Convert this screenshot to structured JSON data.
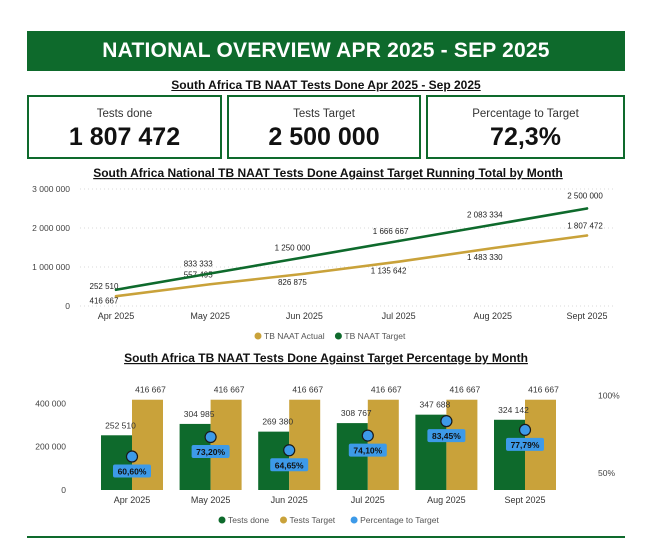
{
  "header": {
    "title": "NATIONAL OVERVIEW APR 2025 - SEP 2025"
  },
  "section1_title": "South Africa TB NAAT Tests Done Apr 2025 - Sep 2025",
  "kpis": [
    {
      "label": "Tests done",
      "value": "1 807 472"
    },
    {
      "label": "Tests Target",
      "value": "2 500 000"
    },
    {
      "label": "Percentage to Target",
      "value": "72,3%"
    }
  ],
  "colors": {
    "green": "#0e6a2c",
    "gold": "#c9a23a",
    "blue": "#3d9ae8"
  },
  "chart_data": [
    {
      "type": "line",
      "title": "South Africa National TB NAAT Tests Done Against Target Running Total by Month",
      "categories": [
        "Apr 2025",
        "May 2025",
        "Jun 2025",
        "Jul 2025",
        "Aug 2025",
        "Sept 2025"
      ],
      "y_ticks": [
        {
          "value": 0,
          "label": "0"
        },
        {
          "value": 1000000,
          "label": "1 000 000"
        },
        {
          "value": 2000000,
          "label": "2 000 000"
        },
        {
          "value": 3000000,
          "label": "3 000 000"
        }
      ],
      "ylim": [
        0,
        3000000
      ],
      "grid": true,
      "legend_position": "bottom",
      "series": [
        {
          "name": "TB NAAT Actual",
          "color": "#c9a23a",
          "values": [
            252510,
            557495,
            826875,
            1135642,
            1483330,
            1807472
          ],
          "labels": [
            "252 510",
            "557 495",
            "826 875",
            "1 135 642",
            "1 483 330",
            "1 807 472"
          ]
        },
        {
          "name": "TB NAAT Target",
          "color": "#0e6a2c",
          "values": [
            416667,
            833333,
            1250000,
            1666667,
            2083334,
            2500000
          ],
          "labels": [
            "416 667",
            "833 333",
            "1 250 000",
            "1 666 667",
            "2 083 334",
            "2 500 000"
          ]
        }
      ]
    },
    {
      "type": "bar",
      "title": "South Africa TB NAAT Tests Done Against Target Percentage by Month",
      "categories": [
        "Apr 2025",
        "May 2025",
        "Jun 2025",
        "Jul 2025",
        "Aug 2025",
        "Sept 2025"
      ],
      "y_ticks": [
        {
          "value": 0,
          "label": "0"
        },
        {
          "value": 200000,
          "label": "200 000"
        },
        {
          "value": 400000,
          "label": "400 000"
        }
      ],
      "ylim": [
        0,
        420000
      ],
      "y2_ticks": [
        {
          "value": 50,
          "label": "50%"
        },
        {
          "value": 100,
          "label": "100%"
        }
      ],
      "y2lim": [
        39,
        110
      ],
      "legend_position": "bottom",
      "series": [
        {
          "name": "Tests done",
          "color": "#0e6a2c",
          "values": [
            252510,
            304985,
            269380,
            308767,
            347688,
            324142
          ],
          "labels": [
            "252 510",
            "304 985",
            "269 380",
            "308 767",
            "347 688",
            "324 142"
          ]
        },
        {
          "name": "Tests Target",
          "color": "#c9a23a",
          "values": [
            416667,
            416667,
            416667,
            416667,
            416667,
            416667
          ],
          "labels": [
            "416 667",
            "416 667",
            "416 667",
            "416 667",
            "416 667",
            "416 667"
          ]
        },
        {
          "name": "Percentage to Target",
          "color": "#3d9ae8",
          "axis": "y2",
          "values": [
            60.6,
            73.2,
            64.65,
            74.1,
            83.45,
            77.79
          ],
          "labels": [
            "60,60%",
            "73,20%",
            "64,65%",
            "74,10%",
            "83,45%",
            "77,79%"
          ]
        }
      ]
    }
  ]
}
